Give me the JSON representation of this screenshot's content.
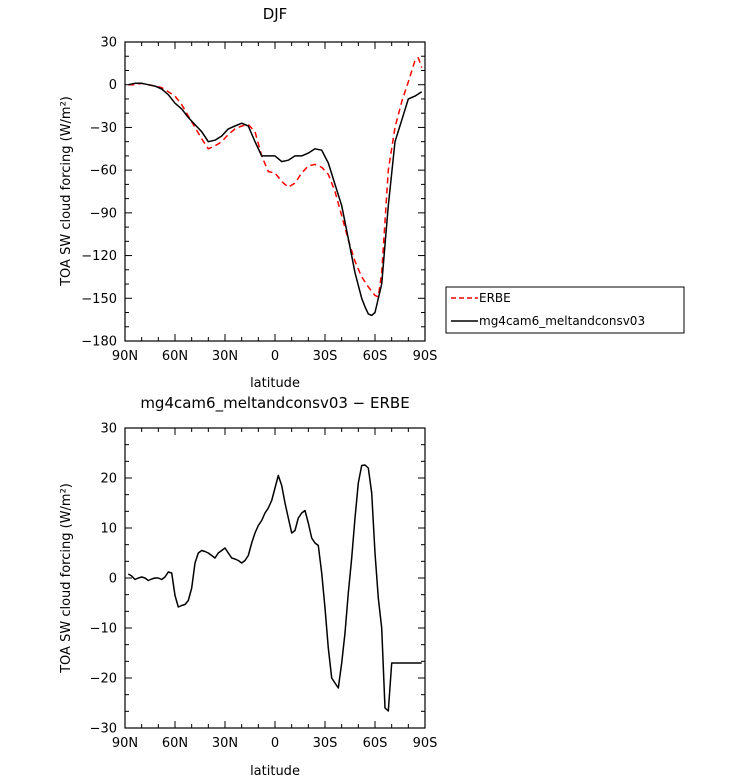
{
  "chart_data": [
    {
      "type": "line",
      "title": "DJF",
      "xlabel": "latitude",
      "ylabel": "TOA SW cloud forcing (W/m²)",
      "xlim": [
        90,
        -90
      ],
      "ylim": [
        -180,
        30
      ],
      "xticks": [
        90,
        60,
        30,
        0,
        -30,
        -60,
        -90
      ],
      "xtick_labels": [
        "90N",
        "60N",
        "30N",
        "0",
        "30S",
        "60S",
        "90S"
      ],
      "yticks": [
        30,
        0,
        -30,
        -60,
        -90,
        -120,
        -150,
        -180
      ],
      "ytick_labels": [
        "30",
        "0",
        "−30",
        "−60",
        "−90",
        "−120",
        "−150",
        "−180"
      ],
      "legend_position": "right",
      "series": [
        {
          "name": "ERBE",
          "color": "#ff0000",
          "dash": "dashed",
          "x": [
            88,
            84,
            80,
            76,
            72,
            68,
            64,
            60,
            56,
            52,
            48,
            44,
            40,
            36,
            32,
            28,
            24,
            20,
            16,
            12,
            8,
            4,
            0,
            -4,
            -8,
            -12,
            -16,
            -20,
            -24,
            -28,
            -32,
            -36,
            -40,
            -44,
            -48,
            -52,
            -56,
            -60,
            -62,
            -64,
            -68,
            -72,
            -76,
            -80,
            -84,
            -86,
            -88
          ],
          "y": [
            0,
            0,
            1,
            0,
            -1,
            -2,
            -5,
            -8,
            -14,
            -22,
            -30,
            -38,
            -45,
            -43,
            -40,
            -35,
            -31,
            -29,
            -28,
            -33,
            -50,
            -61,
            -62,
            -68,
            -72,
            -69,
            -62,
            -57,
            -56,
            -58,
            -63,
            -75,
            -92,
            -109,
            -124,
            -135,
            -142,
            -148,
            -149,
            -132,
            -60,
            -30,
            -12,
            2,
            17,
            19,
            12
          ]
        },
        {
          "name": "mg4cam6_meltandconsv03",
          "color": "#000000",
          "dash": "solid",
          "x": [
            88,
            84,
            80,
            76,
            72,
            68,
            64,
            60,
            56,
            52,
            48,
            44,
            40,
            36,
            32,
            28,
            24,
            20,
            16,
            12,
            8,
            4,
            0,
            -4,
            -8,
            -12,
            -16,
            -20,
            -24,
            -28,
            -32,
            -36,
            -40,
            -44,
            -48,
            -52,
            -54,
            -56,
            -58,
            -60,
            -64,
            -68,
            -72,
            -76,
            -80,
            -84,
            -88
          ],
          "y": [
            0,
            1,
            1,
            0,
            -1,
            -3,
            -7,
            -13,
            -17,
            -23,
            -28,
            -33,
            -40,
            -39,
            -36,
            -31,
            -29,
            -27,
            -29,
            -40,
            -50,
            -50,
            -50,
            -54,
            -53,
            -50,
            -50,
            -48,
            -45,
            -46,
            -55,
            -70,
            -85,
            -108,
            -132,
            -150,
            -156,
            -161,
            -162,
            -160,
            -140,
            -85,
            -40,
            -25,
            -10,
            -8,
            -5
          ]
        }
      ]
    },
    {
      "type": "line",
      "title": "mg4cam6_meltandconsv03 − ERBE",
      "xlabel": "latitude",
      "ylabel": "TOA SW cloud forcing (W/m²)",
      "xlim": [
        90,
        -90
      ],
      "ylim": [
        -30,
        30
      ],
      "xticks": [
        90,
        60,
        30,
        0,
        -30,
        -60,
        -90
      ],
      "xtick_labels": [
        "90N",
        "60N",
        "30N",
        "0",
        "30S",
        "60S",
        "90S"
      ],
      "yticks": [
        30,
        20,
        10,
        0,
        -10,
        -20,
        -30
      ],
      "ytick_labels": [
        "30",
        "20",
        "10",
        "0",
        "−10",
        "−20",
        "−30"
      ],
      "series": [
        {
          "color": "#000000",
          "dash": "solid",
          "x": [
            88,
            86,
            84,
            82,
            80,
            78,
            76,
            74,
            72,
            70,
            68,
            66,
            64,
            62,
            60,
            58,
            56,
            54,
            52,
            50,
            48,
            46,
            44,
            42,
            40,
            38,
            36,
            34,
            32,
            30,
            28,
            26,
            24,
            22,
            20,
            18,
            16,
            14,
            12,
            10,
            8,
            6,
            4,
            2,
            0,
            -2,
            -4,
            -6,
            -8,
            -10,
            -12,
            -14,
            -16,
            -18,
            -20,
            -22,
            -24,
            -26,
            -28,
            -30,
            -32,
            -34,
            -36,
            -38,
            -40,
            -42,
            -44,
            -46,
            -48,
            -50,
            -52,
            -54,
            -56,
            -58,
            -60,
            -62,
            -64,
            -66,
            -68,
            -70,
            -72,
            -74,
            -76,
            -78,
            -80,
            -82,
            -84,
            -86,
            -88
          ],
          "y": [
            0.8,
            0.4,
            -0.3,
            0,
            0.2,
            0,
            -0.5,
            -0.2,
            0,
            0,
            -0.3,
            0.2,
            1.2,
            1,
            -3.5,
            -5.8,
            -5.5,
            -5.3,
            -4.5,
            -2,
            3,
            5,
            5.5,
            5.3,
            5,
            4.5,
            4,
            5,
            5.5,
            6,
            5,
            4,
            3.8,
            3.5,
            3,
            3.5,
            4.5,
            7,
            9,
            10.5,
            11.5,
            13,
            14,
            15.5,
            18,
            20.5,
            18.5,
            15,
            12,
            9,
            9.5,
            12,
            13,
            13.5,
            11,
            8,
            7,
            6.5,
            1,
            -6,
            -14,
            -20,
            -21,
            -22,
            -17,
            -11,
            -3,
            4,
            12,
            19,
            22.5,
            22.6,
            22,
            17,
            5,
            -4,
            -10,
            -26,
            -26.6,
            -17,
            -17,
            -17,
            -17,
            -17,
            -17,
            -17,
            -17,
            -17,
            -17
          ]
        }
      ]
    }
  ]
}
